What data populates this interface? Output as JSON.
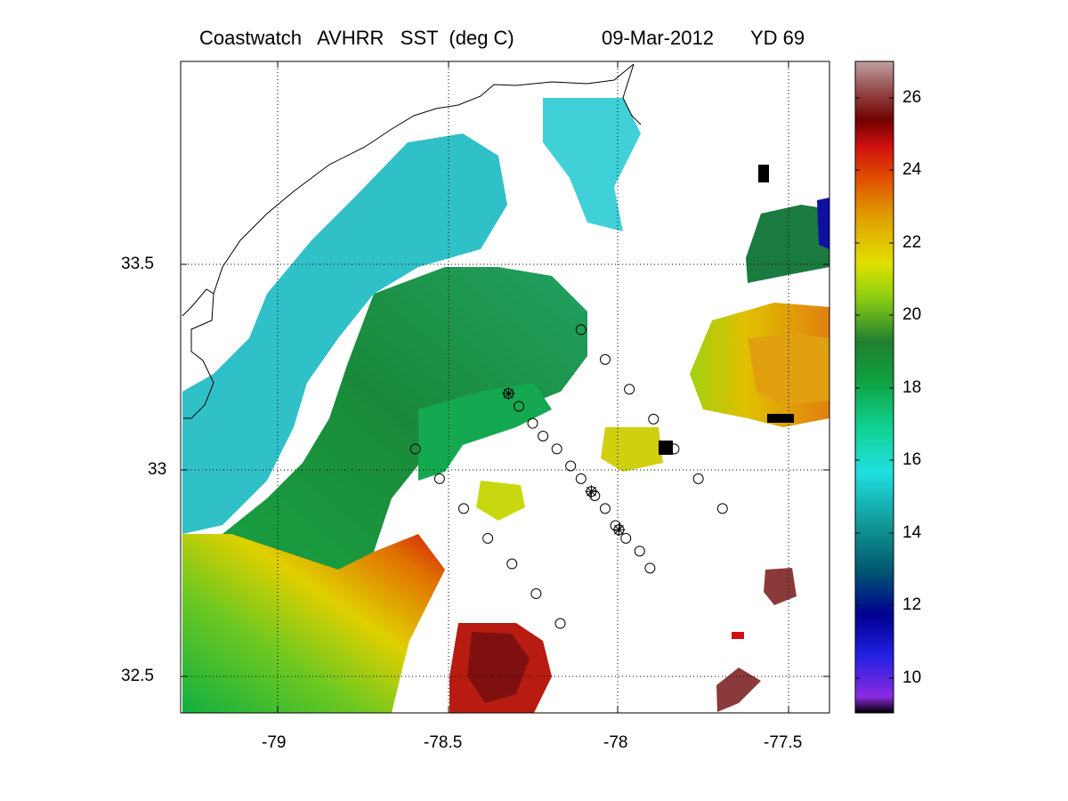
{
  "title": {
    "left": "Coastwatch   AVHRR   SST  (deg C)",
    "date": "09-Mar-2012",
    "yearday": "YD 69"
  },
  "map": {
    "lon_range": [
      -79.28,
      -77.4
    ],
    "lat_range": [
      32.42,
      33.95
    ],
    "lon_ticks": [
      "-79",
      "-78.5",
      "-78",
      "-77.5"
    ],
    "lat_ticks": [
      "33.5",
      "33",
      "32.5"
    ],
    "grid": "dotted",
    "stations": [
      {
        "lon": -78.12,
        "lat": 33.32,
        "star": false
      },
      {
        "lon": -78.05,
        "lat": 33.25,
        "star": false
      },
      {
        "lon": -77.98,
        "lat": 33.18,
        "star": false
      },
      {
        "lon": -77.91,
        "lat": 33.11,
        "star": false
      },
      {
        "lon": -77.85,
        "lat": 33.04,
        "star": false
      },
      {
        "lon": -77.78,
        "lat": 32.97,
        "star": false
      },
      {
        "lon": -77.71,
        "lat": 32.9,
        "star": false
      },
      {
        "lon": -78.33,
        "lat": 33.17,
        "star": true
      },
      {
        "lon": -78.3,
        "lat": 33.14,
        "star": false
      },
      {
        "lon": -78.26,
        "lat": 33.1,
        "star": false
      },
      {
        "lon": -78.23,
        "lat": 33.07,
        "star": false
      },
      {
        "lon": -78.19,
        "lat": 33.04,
        "star": false
      },
      {
        "lon": -78.15,
        "lat": 33.0,
        "star": false
      },
      {
        "lon": -78.12,
        "lat": 32.97,
        "star": false
      },
      {
        "lon": -78.09,
        "lat": 32.94,
        "star": true
      },
      {
        "lon": -78.08,
        "lat": 32.93,
        "star": false
      },
      {
        "lon": -78.05,
        "lat": 32.9,
        "star": false
      },
      {
        "lon": -78.02,
        "lat": 32.86,
        "star": false
      },
      {
        "lon": -78.01,
        "lat": 32.85,
        "star": true
      },
      {
        "lon": -77.99,
        "lat": 32.83,
        "star": false
      },
      {
        "lon": -77.95,
        "lat": 32.8,
        "star": false
      },
      {
        "lon": -77.92,
        "lat": 32.76,
        "star": false
      },
      {
        "lon": -78.6,
        "lat": 33.04,
        "star": false
      },
      {
        "lon": -78.53,
        "lat": 32.97,
        "star": false
      },
      {
        "lon": -78.46,
        "lat": 32.9,
        "star": false
      },
      {
        "lon": -78.39,
        "lat": 32.83,
        "star": false
      },
      {
        "lon": -78.32,
        "lat": 32.77,
        "star": false
      },
      {
        "lon": -78.25,
        "lat": 32.7,
        "star": false
      },
      {
        "lon": -78.18,
        "lat": 32.63,
        "star": false
      }
    ]
  },
  "colorbar": {
    "range": [
      9,
      27
    ],
    "ticks": [
      "26",
      "24",
      "22",
      "20",
      "18",
      "16",
      "14",
      "12",
      "10"
    ]
  }
}
